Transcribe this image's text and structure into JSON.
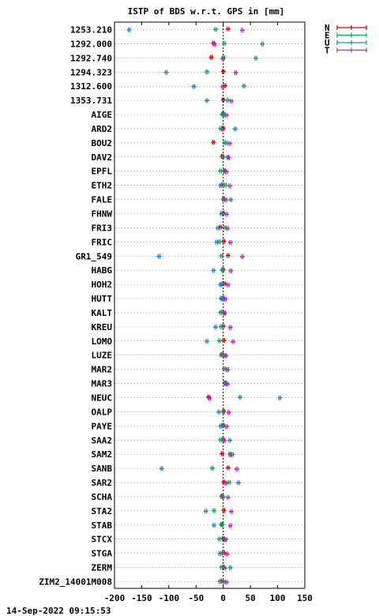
{
  "footer": {
    "timestamp": "14-Sep-2022 09:15:53"
  },
  "chart_data": {
    "type": "scatter",
    "title": "ISTP of BDS w.r.t. GPS in [mm]",
    "xlim": [
      -200,
      150
    ],
    "xticks": [
      -200,
      -150,
      -100,
      -50,
      0,
      50,
      100,
      150
    ],
    "grid": true,
    "legend_position": "top-right, outside plot",
    "categories": [
      "1253.210",
      "1292.000",
      "1292.740",
      "1294.323",
      "1312.600",
      "1353.731",
      "AIGE",
      "ARD2",
      "BOU2",
      "DAV2",
      "EPFL",
      "ETH2",
      "FALE",
      "FHNW",
      "FRI3",
      "FRIC",
      "GR1_549",
      "HABG",
      "HOH2",
      "HUTT",
      "KALT",
      "KREU",
      "LOMO",
      "LUZE",
      "MAR2",
      "MAR3",
      "NEUC",
      "OALP",
      "PAYE",
      "SAA2",
      "SAM2",
      "SANB",
      "SAR2",
      "SCHA",
      "STA2",
      "STAB",
      "STCX",
      "STGA",
      "ZERM",
      "ZIM2_14001M008"
    ],
    "series": [
      {
        "name": "N",
        "color": "#cc0000",
        "values": [
          9,
          -18,
          -22,
          0,
          3,
          0,
          0,
          0,
          -18,
          -2,
          2,
          -2,
          1,
          0,
          -5,
          1,
          9,
          0,
          3,
          0,
          -2,
          0,
          1,
          -2,
          2,
          3,
          -27,
          1,
          0,
          0,
          -2,
          9,
          1,
          -2,
          1,
          -3,
          0,
          1,
          0,
          -2
        ]
      },
      {
        "name": "E",
        "color": "#00a650",
        "values": [
          -14,
          2,
          1,
          -30,
          38,
          8,
          -2,
          -5,
          3,
          0,
          -5,
          4,
          0,
          -3,
          3,
          -7,
          -3,
          -2,
          -3,
          -4,
          -5,
          -4,
          -7,
          -4,
          2,
          5,
          31,
          0,
          -2,
          -5,
          12,
          -20,
          11,
          -3,
          -17,
          -2,
          -7,
          -3,
          -3,
          -6
        ]
      },
      {
        "name": "U",
        "color": "#1e7fd0",
        "values": [
          -173,
          72,
          60,
          -105,
          -54,
          -30,
          2,
          22,
          6,
          8,
          3,
          -5,
          14,
          -3,
          -10,
          -12,
          -118,
          -18,
          -5,
          -2,
          3,
          -14,
          -30,
          3,
          8,
          4,
          104,
          -8,
          -5,
          12,
          17,
          -113,
          28,
          0,
          -32,
          -17,
          5,
          -6,
          13,
          2
        ]
      },
      {
        "name": "T",
        "color": "#bb22cc",
        "values": [
          35,
          -16,
          -1,
          23,
          -1,
          15,
          6,
          -1,
          12,
          10,
          6,
          12,
          5,
          6,
          8,
          13,
          35,
          14,
          9,
          4,
          2,
          13,
          18,
          5,
          8,
          8,
          -25,
          10,
          6,
          2,
          14,
          25,
          5,
          9,
          15,
          13,
          3,
          7,
          3,
          6
        ]
      }
    ]
  }
}
